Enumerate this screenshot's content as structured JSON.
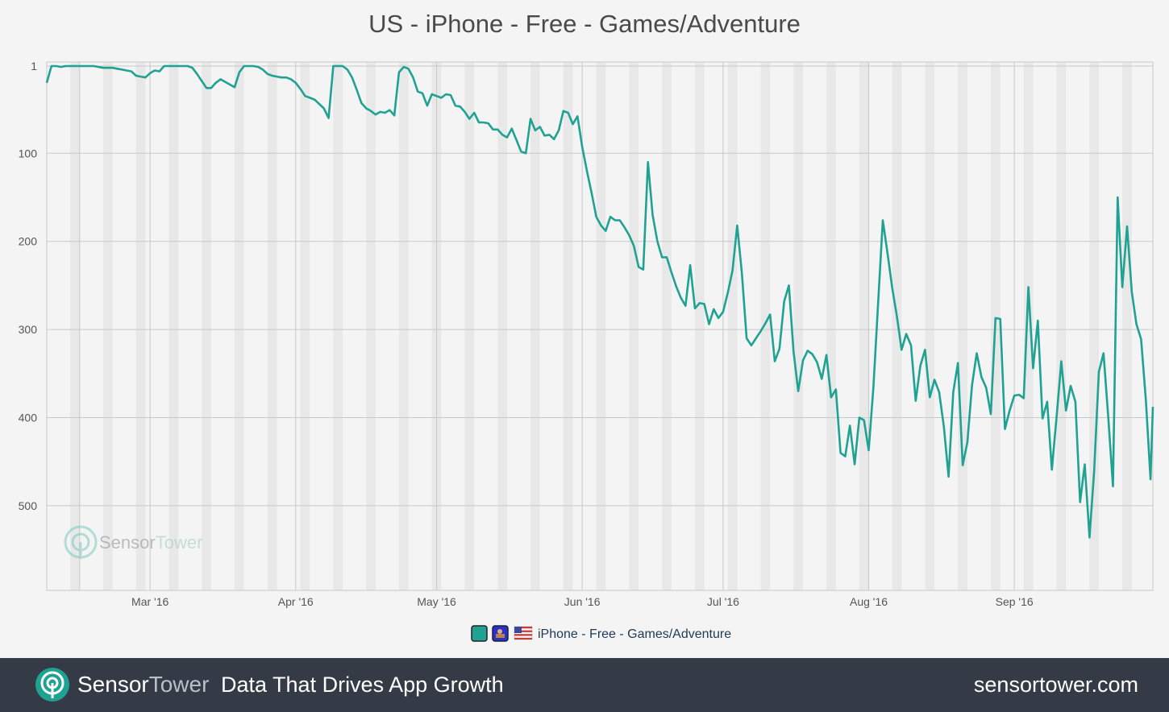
{
  "title": "US - iPhone - Free - Games/Adventure",
  "colors": {
    "series": "#1fa292",
    "background": "#f4f4f4",
    "footer": "#343a46",
    "weekend_band": "#e8e8e8",
    "grid": "#c8c8c8"
  },
  "watermark": {
    "brand_a": "Sensor",
    "brand_b": "Tower"
  },
  "footer": {
    "brand_a": "Sensor",
    "brand_b": "Tower",
    "tagline": "Data That Drives App Growth",
    "url": "sensortower.com"
  },
  "legend": {
    "label": "iPhone - Free - Games/Adventure",
    "swatch_icons": [
      "teal-swatch-icon",
      "app-icon",
      "us-flag-icon"
    ]
  },
  "chart_data": {
    "type": "line",
    "title": "US - iPhone - Free - Games/Adventure",
    "xlabel": "",
    "ylabel": "",
    "y_inverted": true,
    "ylim": [
      1,
      600
    ],
    "y_ticks": [
      {
        "value": 1,
        "label": "1"
      },
      {
        "value": 100,
        "label": "100"
      },
      {
        "value": 200,
        "label": "200"
      },
      {
        "value": 300,
        "label": "300"
      },
      {
        "value": 400,
        "label": "400"
      },
      {
        "value": 500,
        "label": "500"
      }
    ],
    "x_range": [
      "2016-02-08",
      "2016-09-30"
    ],
    "x_ticks": [
      {
        "date": "2016-03-01",
        "label": "Mar '16"
      },
      {
        "date": "2016-04-01",
        "label": "Apr '16"
      },
      {
        "date": "2016-05-01",
        "label": "May '16"
      },
      {
        "date": "2016-06-01",
        "label": "Jun '16"
      },
      {
        "date": "2016-07-01",
        "label": "Jul '16"
      },
      {
        "date": "2016-08-01",
        "label": "Aug '16"
      },
      {
        "date": "2016-09-01",
        "label": "Sep '16"
      }
    ],
    "grid": true,
    "weekend_bands": true,
    "legend_position": "bottom-center",
    "series": [
      {
        "name": "iPhone - Free - Games/Adventure",
        "color": "#1fa292",
        "points": [
          [
            "2016-02-08",
            20
          ],
          [
            "2016-02-09",
            1
          ],
          [
            "2016-02-10",
            1
          ],
          [
            "2016-02-11",
            2
          ],
          [
            "2016-02-12",
            1
          ],
          [
            "2016-02-13",
            1
          ],
          [
            "2016-02-14",
            1
          ],
          [
            "2016-02-15",
            1
          ],
          [
            "2016-02-16",
            1
          ],
          [
            "2016-02-17",
            1
          ],
          [
            "2016-02-18",
            1
          ],
          [
            "2016-02-19",
            2
          ],
          [
            "2016-02-20",
            3
          ],
          [
            "2016-02-21",
            3
          ],
          [
            "2016-02-22",
            3
          ],
          [
            "2016-02-23",
            4
          ],
          [
            "2016-02-24",
            5
          ],
          [
            "2016-02-25",
            6
          ],
          [
            "2016-02-26",
            7
          ],
          [
            "2016-02-27",
            12
          ],
          [
            "2016-02-28",
            13
          ],
          [
            "2016-02-29",
            14
          ],
          [
            "2016-03-01",
            9
          ],
          [
            "2016-03-02",
            6
          ],
          [
            "2016-03-03",
            7
          ],
          [
            "2016-03-04",
            1
          ],
          [
            "2016-03-05",
            1
          ],
          [
            "2016-03-06",
            1
          ],
          [
            "2016-03-07",
            1
          ],
          [
            "2016-03-08",
            1
          ],
          [
            "2016-03-09",
            1
          ],
          [
            "2016-03-10",
            3
          ],
          [
            "2016-03-11",
            10
          ],
          [
            "2016-03-12",
            18
          ],
          [
            "2016-03-13",
            26
          ],
          [
            "2016-03-14",
            26
          ],
          [
            "2016-03-15",
            20
          ],
          [
            "2016-03-16",
            16
          ],
          [
            "2016-03-17",
            19
          ],
          [
            "2016-03-18",
            22
          ],
          [
            "2016-03-19",
            25
          ],
          [
            "2016-03-20",
            8
          ],
          [
            "2016-03-21",
            1
          ],
          [
            "2016-03-22",
            1
          ],
          [
            "2016-03-23",
            1
          ],
          [
            "2016-03-24",
            2
          ],
          [
            "2016-03-25",
            5
          ],
          [
            "2016-03-26",
            10
          ],
          [
            "2016-03-27",
            12
          ],
          [
            "2016-03-28",
            13
          ],
          [
            "2016-03-29",
            14
          ],
          [
            "2016-03-30",
            14
          ],
          [
            "2016-03-31",
            16
          ],
          [
            "2016-04-01",
            20
          ],
          [
            "2016-04-02",
            27
          ],
          [
            "2016-04-03",
            35
          ],
          [
            "2016-04-04",
            37
          ],
          [
            "2016-04-05",
            39
          ],
          [
            "2016-04-06",
            44
          ],
          [
            "2016-04-07",
            49
          ],
          [
            "2016-04-08",
            60
          ],
          [
            "2016-04-09",
            1
          ],
          [
            "2016-04-10",
            1
          ],
          [
            "2016-04-11",
            1
          ],
          [
            "2016-04-12",
            5
          ],
          [
            "2016-04-13",
            14
          ],
          [
            "2016-04-14",
            28
          ],
          [
            "2016-04-15",
            43
          ],
          [
            "2016-04-16",
            49
          ],
          [
            "2016-04-17",
            52
          ],
          [
            "2016-04-18",
            56
          ],
          [
            "2016-04-19",
            53
          ],
          [
            "2016-04-20",
            54
          ],
          [
            "2016-04-21",
            51
          ],
          [
            "2016-04-22",
            57
          ],
          [
            "2016-04-23",
            8
          ],
          [
            "2016-04-24",
            2
          ],
          [
            "2016-04-25",
            4
          ],
          [
            "2016-04-26",
            14
          ],
          [
            "2016-04-27",
            30
          ],
          [
            "2016-04-28",
            32
          ],
          [
            "2016-04-29",
            46
          ],
          [
            "2016-04-30",
            33
          ],
          [
            "2016-05-01",
            35
          ],
          [
            "2016-05-02",
            37
          ],
          [
            "2016-05-03",
            33
          ],
          [
            "2016-05-04",
            34
          ],
          [
            "2016-05-05",
            46
          ],
          [
            "2016-05-06",
            47
          ],
          [
            "2016-05-07",
            53
          ],
          [
            "2016-05-08",
            61
          ],
          [
            "2016-05-09",
            54
          ],
          [
            "2016-05-10",
            65
          ],
          [
            "2016-05-11",
            65
          ],
          [
            "2016-05-12",
            66
          ],
          [
            "2016-05-13",
            73
          ],
          [
            "2016-05-14",
            73
          ],
          [
            "2016-05-15",
            79
          ],
          [
            "2016-05-16",
            82
          ],
          [
            "2016-05-17",
            72
          ],
          [
            "2016-05-18",
            85
          ],
          [
            "2016-05-19",
            98
          ],
          [
            "2016-05-20",
            100
          ],
          [
            "2016-05-21",
            61
          ],
          [
            "2016-05-22",
            74
          ],
          [
            "2016-05-23",
            70
          ],
          [
            "2016-05-24",
            80
          ],
          [
            "2016-05-25",
            79
          ],
          [
            "2016-05-26",
            84
          ],
          [
            "2016-05-27",
            74
          ],
          [
            "2016-05-28",
            52
          ],
          [
            "2016-05-29",
            54
          ],
          [
            "2016-05-30",
            67
          ],
          [
            "2016-05-31",
            58
          ],
          [
            "2016-06-01",
            93
          ],
          [
            "2016-06-02",
            120
          ],
          [
            "2016-06-03",
            145
          ],
          [
            "2016-06-04",
            172
          ],
          [
            "2016-06-05",
            182
          ],
          [
            "2016-06-06",
            188
          ],
          [
            "2016-06-07",
            172
          ],
          [
            "2016-06-08",
            176
          ],
          [
            "2016-06-09",
            176
          ],
          [
            "2016-06-10",
            184
          ],
          [
            "2016-06-11",
            193
          ],
          [
            "2016-06-12",
            205
          ],
          [
            "2016-06-13",
            229
          ],
          [
            "2016-06-14",
            232
          ],
          [
            "2016-06-15",
            110
          ],
          [
            "2016-06-16",
            170
          ],
          [
            "2016-06-17",
            200
          ],
          [
            "2016-06-18",
            218
          ],
          [
            "2016-06-19",
            218
          ],
          [
            "2016-06-20",
            235
          ],
          [
            "2016-06-21",
            251
          ],
          [
            "2016-06-22",
            264
          ],
          [
            "2016-06-23",
            273
          ],
          [
            "2016-06-24",
            227
          ],
          [
            "2016-06-25",
            276
          ],
          [
            "2016-06-26",
            270
          ],
          [
            "2016-06-27",
            271
          ],
          [
            "2016-06-28",
            294
          ],
          [
            "2016-06-29",
            277
          ],
          [
            "2016-06-30",
            287
          ],
          [
            "2016-07-01",
            280
          ],
          [
            "2016-07-02",
            258
          ],
          [
            "2016-07-03",
            233
          ],
          [
            "2016-07-04",
            182
          ],
          [
            "2016-07-05",
            236
          ],
          [
            "2016-07-06",
            310
          ],
          [
            "2016-07-07",
            318
          ],
          [
            "2016-07-08",
            310
          ],
          [
            "2016-07-09",
            302
          ],
          [
            "2016-07-10",
            293
          ],
          [
            "2016-07-11",
            283
          ],
          [
            "2016-07-12",
            336
          ],
          [
            "2016-07-13",
            322
          ],
          [
            "2016-07-14",
            268
          ],
          [
            "2016-07-15",
            250
          ],
          [
            "2016-07-16",
            325
          ],
          [
            "2016-07-17",
            370
          ],
          [
            "2016-07-18",
            335
          ],
          [
            "2016-07-19",
            324
          ],
          [
            "2016-07-20",
            328
          ],
          [
            "2016-07-21",
            337
          ],
          [
            "2016-07-22",
            356
          ],
          [
            "2016-07-23",
            329
          ],
          [
            "2016-07-24",
            377
          ],
          [
            "2016-07-25",
            368
          ],
          [
            "2016-07-26",
            440
          ],
          [
            "2016-07-27",
            444
          ],
          [
            "2016-07-28",
            409
          ],
          [
            "2016-07-29",
            453
          ],
          [
            "2016-07-30",
            400
          ],
          [
            "2016-07-31",
            403
          ],
          [
            "2016-08-01",
            437
          ],
          [
            "2016-08-02",
            365
          ],
          [
            "2016-08-03",
            270
          ],
          [
            "2016-08-04",
            176
          ],
          [
            "2016-08-05",
            213
          ],
          [
            "2016-08-06",
            253
          ],
          [
            "2016-08-07",
            285
          ],
          [
            "2016-08-08",
            323
          ],
          [
            "2016-08-09",
            305
          ],
          [
            "2016-08-10",
            318
          ],
          [
            "2016-08-11",
            381
          ],
          [
            "2016-08-12",
            341
          ],
          [
            "2016-08-13",
            323
          ],
          [
            "2016-08-14",
            377
          ],
          [
            "2016-08-15",
            357
          ],
          [
            "2016-08-16",
            371
          ],
          [
            "2016-08-17",
            410
          ],
          [
            "2016-08-18",
            467
          ],
          [
            "2016-08-19",
            371
          ],
          [
            "2016-08-20",
            338
          ],
          [
            "2016-08-21",
            454
          ],
          [
            "2016-08-22",
            428
          ],
          [
            "2016-08-23",
            363
          ],
          [
            "2016-08-24",
            327
          ],
          [
            "2016-08-25",
            354
          ],
          [
            "2016-08-26",
            366
          ],
          [
            "2016-08-27",
            396
          ],
          [
            "2016-08-28",
            287
          ],
          [
            "2016-08-29",
            288
          ],
          [
            "2016-08-30",
            413
          ],
          [
            "2016-08-31",
            392
          ],
          [
            "2016-09-01",
            375
          ],
          [
            "2016-09-02",
            374
          ],
          [
            "2016-09-03",
            378
          ],
          [
            "2016-09-04",
            252
          ],
          [
            "2016-09-05",
            344
          ],
          [
            "2016-09-06",
            290
          ],
          [
            "2016-09-07",
            401
          ],
          [
            "2016-09-08",
            382
          ],
          [
            "2016-09-09",
            459
          ],
          [
            "2016-09-10",
            399
          ],
          [
            "2016-09-11",
            336
          ],
          [
            "2016-09-12",
            392
          ],
          [
            "2016-09-13",
            364
          ],
          [
            "2016-09-14",
            382
          ],
          [
            "2016-09-15",
            496
          ],
          [
            "2016-09-16",
            453
          ],
          [
            "2016-09-17",
            536
          ],
          [
            "2016-09-18",
            460
          ],
          [
            "2016-09-19",
            348
          ],
          [
            "2016-09-20",
            327
          ],
          [
            "2016-09-21",
            400
          ],
          [
            "2016-09-22",
            478
          ],
          [
            "2016-09-23",
            150
          ],
          [
            "2016-09-24",
            252
          ],
          [
            "2016-09-25",
            183
          ],
          [
            "2016-09-26",
            257
          ],
          [
            "2016-09-27",
            294
          ],
          [
            "2016-09-28",
            311
          ],
          [
            "2016-09-29",
            380
          ],
          [
            "2016-09-30",
            470
          ]
        ]
      }
    ]
  }
}
